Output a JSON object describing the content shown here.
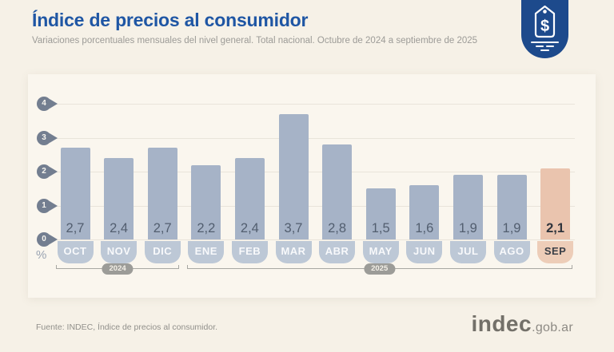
{
  "header": {
    "title": "Índice de precios al consumidor",
    "subtitle": "Variaciones porcentuales mensuales del nivel general. Total nacional. Octubre de 2024 a septiembre de 2025",
    "badge_icon": "price-tag-icon",
    "badge_color": "#1d4a8c",
    "title_color": "#1f56a4"
  },
  "chart_data": {
    "type": "bar",
    "title": "Índice de precios al consumidor",
    "subtitle": "Variaciones porcentuales mensuales del nivel general. Total nacional. Octubre de 2024 a septiembre de 2025",
    "xlabel": "",
    "ylabel": "%",
    "ylim": [
      0,
      4
    ],
    "yticks": [
      0,
      1,
      2,
      3,
      4
    ],
    "grid": true,
    "categories": [
      "OCT",
      "NOV",
      "DIC",
      "ENE",
      "FEB",
      "MAR",
      "ABR",
      "MAY",
      "JUN",
      "JUL",
      "AGO",
      "SEP"
    ],
    "values": [
      2.7,
      2.4,
      2.7,
      2.2,
      2.4,
      3.7,
      2.8,
      1.5,
      1.6,
      1.9,
      1.9,
      2.1
    ],
    "value_labels": [
      "2,7",
      "2,4",
      "2,7",
      "2,2",
      "2,4",
      "3,7",
      "2,8",
      "1,5",
      "1,6",
      "1,9",
      "1,9",
      "2,1"
    ],
    "highlight_index": 11,
    "year_groups": [
      {
        "label": "2024",
        "span": [
          0,
          2
        ]
      },
      {
        "label": "2025",
        "span": [
          3,
          11
        ]
      }
    ],
    "colors": {
      "bar": "#a6b3c7",
      "bar_label_bg": "#bdc8d6",
      "highlight_bar": "#eac4ae",
      "highlight_label_bg": "#edcdb8",
      "axis_tick": "#737e90",
      "gridline": "#e9e4da"
    }
  },
  "footer": {
    "source": "Fuente: INDEC, Índice de precios al consumidor.",
    "logo": {
      "brand": "indec",
      "suffix": ".gob.ar"
    }
  }
}
